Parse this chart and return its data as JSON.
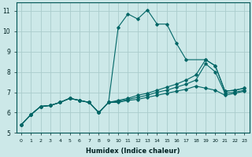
{
  "xlabel": "Humidex (Indice chaleur)",
  "bg_color": "#cce8e8",
  "grid_color": "#aacccc",
  "line_color": "#006666",
  "xlim": [
    -0.5,
    23.5
  ],
  "ylim": [
    5,
    11.4
  ],
  "yticks": [
    5,
    6,
    7,
    8,
    9,
    10,
    11
  ],
  "xticks": [
    0,
    1,
    2,
    3,
    4,
    5,
    6,
    7,
    8,
    9,
    10,
    11,
    12,
    13,
    14,
    15,
    16,
    17,
    18,
    19,
    20,
    21,
    22,
    23
  ],
  "series": [
    {
      "x": [
        0,
        1,
        2,
        3,
        4,
        5,
        6,
        7,
        8,
        9,
        10,
        11,
        12,
        13,
        14,
        15,
        16,
        17,
        19,
        20,
        21,
        22,
        23
      ],
      "y": [
        5.4,
        5.9,
        6.3,
        6.35,
        6.5,
        6.7,
        6.6,
        6.5,
        6.0,
        6.5,
        10.2,
        10.85,
        10.6,
        11.05,
        10.35,
        10.35,
        9.4,
        8.6,
        8.6,
        8.3,
        7.05,
        7.1,
        7.2
      ]
    },
    {
      "x": [
        0,
        1,
        2,
        3,
        4,
        5,
        6,
        7,
        8,
        9,
        10,
        11,
        12,
        13,
        14,
        15,
        16,
        17,
        18,
        19,
        20,
        21,
        22,
        23
      ],
      "y": [
        5.4,
        5.9,
        6.3,
        6.35,
        6.5,
        6.7,
        6.6,
        6.5,
        6.0,
        6.5,
        6.6,
        6.7,
        6.85,
        6.95,
        7.1,
        7.25,
        7.4,
        7.6,
        7.85,
        8.6,
        8.3,
        7.05,
        7.1,
        7.2
      ]
    },
    {
      "x": [
        0,
        1,
        2,
        3,
        4,
        5,
        6,
        7,
        8,
        9,
        10,
        11,
        12,
        13,
        14,
        15,
        16,
        17,
        18,
        19,
        20,
        21,
        22,
        23
      ],
      "y": [
        5.4,
        5.9,
        6.3,
        6.35,
        6.5,
        6.7,
        6.6,
        6.5,
        6.0,
        6.5,
        6.55,
        6.65,
        6.75,
        6.85,
        7.0,
        7.1,
        7.25,
        7.4,
        7.6,
        8.4,
        8.0,
        6.95,
        7.0,
        7.1
      ]
    },
    {
      "x": [
        0,
        1,
        2,
        3,
        4,
        5,
        6,
        7,
        8,
        9,
        10,
        11,
        12,
        13,
        14,
        15,
        16,
        17,
        18,
        19,
        20,
        21,
        22,
        23
      ],
      "y": [
        5.4,
        5.9,
        6.3,
        6.35,
        6.5,
        6.7,
        6.6,
        6.5,
        6.0,
        6.5,
        6.5,
        6.6,
        6.65,
        6.75,
        6.85,
        6.95,
        7.05,
        7.15,
        7.3,
        7.2,
        7.1,
        6.85,
        6.95,
        7.05
      ]
    }
  ]
}
